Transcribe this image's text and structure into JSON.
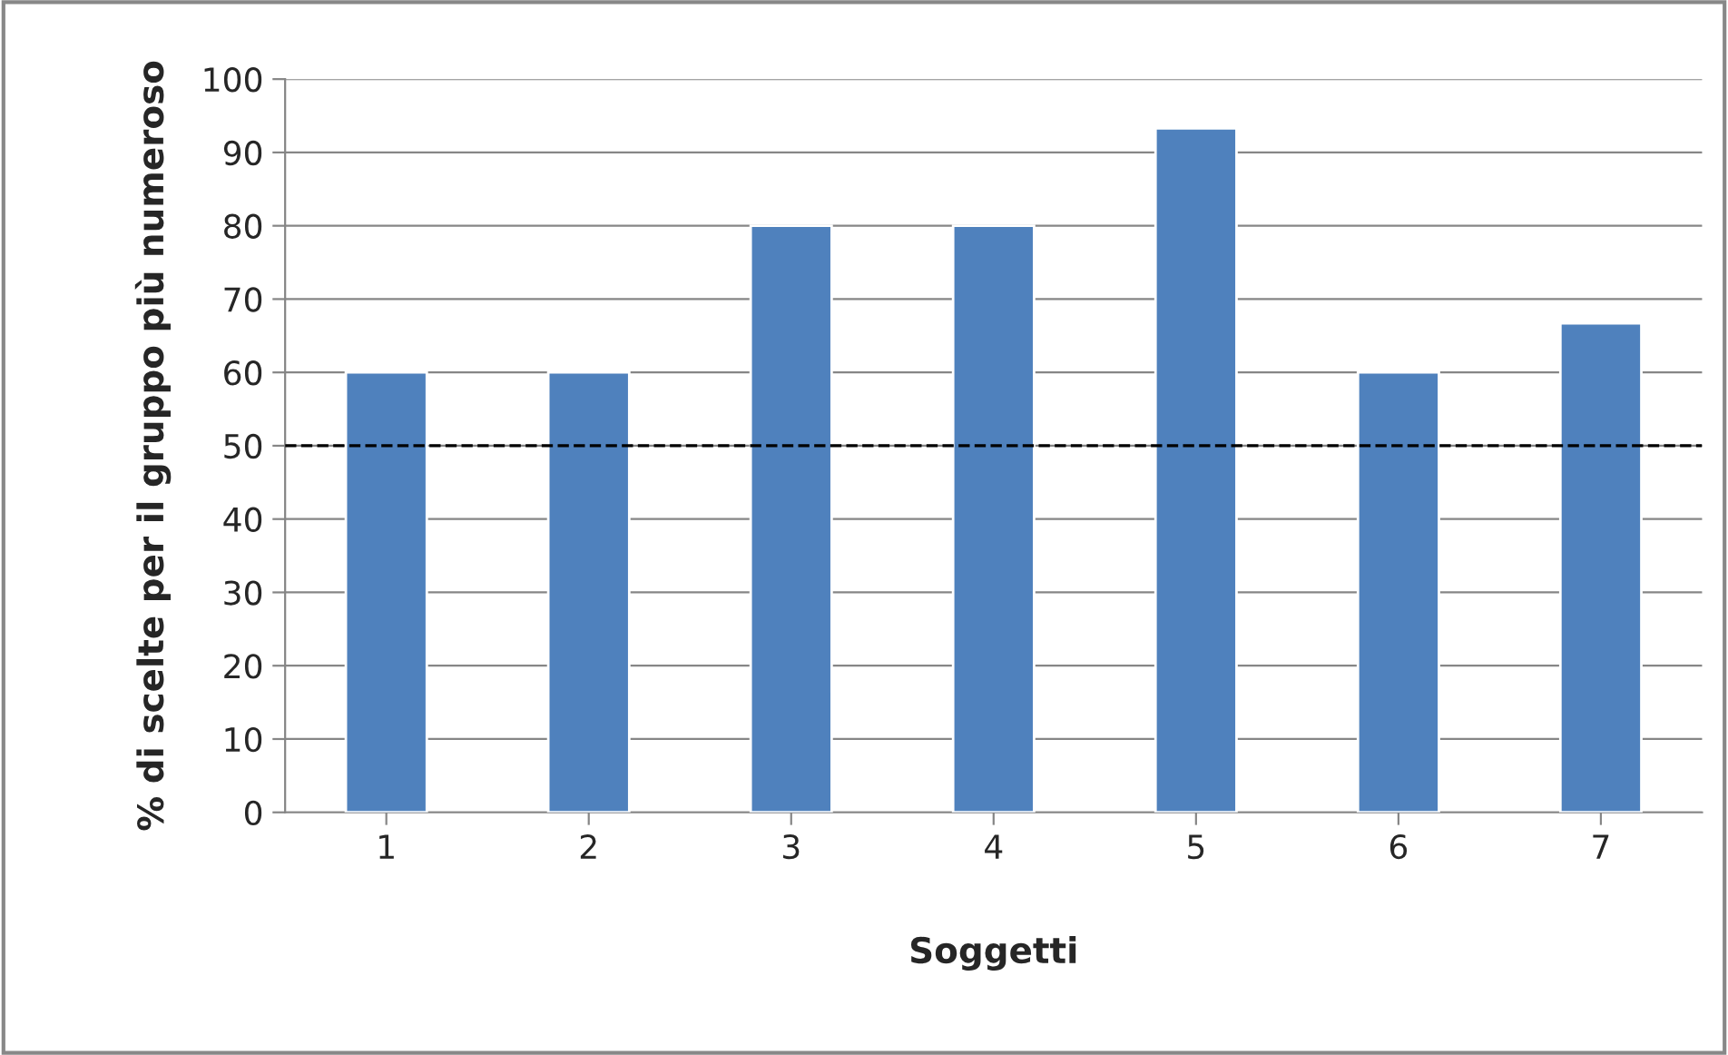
{
  "chart_data": {
    "type": "bar",
    "xlabel": "Soggetti",
    "ylabel": "% di scelte per il gruppo più numeroso",
    "categories": [
      "1",
      "2",
      "3",
      "4",
      "5",
      "6",
      "7"
    ],
    "values": [
      60,
      60,
      80,
      80,
      93.3,
      60,
      66.7
    ],
    "color": "#4f81bd",
    "ylim": [
      0,
      100
    ],
    "yticks": [
      0,
      10,
      20,
      30,
      40,
      50,
      60,
      70,
      80,
      90,
      100
    ],
    "grid": "y",
    "ref_lines": [
      {
        "axis": "y",
        "value": 50,
        "label": null,
        "color": "#000000",
        "line_style": "dashed"
      }
    ]
  }
}
